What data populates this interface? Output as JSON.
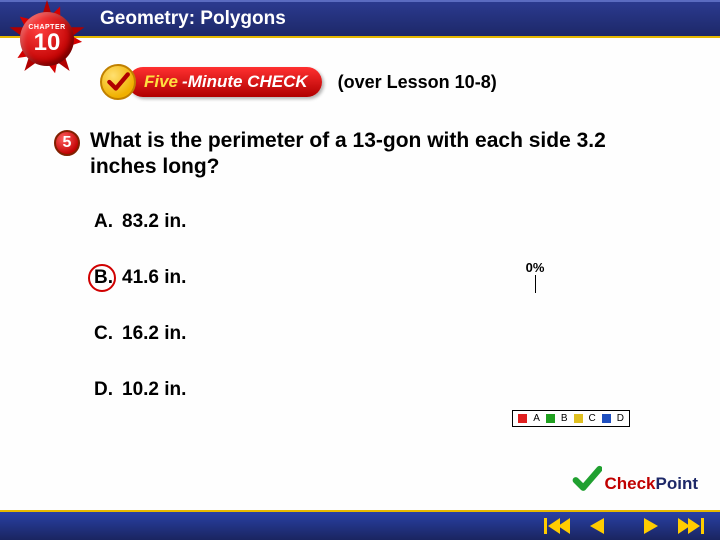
{
  "header": {
    "title": "Geometry: Polygons",
    "chapter_label": "CHAPTER",
    "chapter_number": "10"
  },
  "fmc": {
    "five_label": "Five",
    "rest_label": "-Minute CHECK",
    "over_lesson": "(over Lesson 10-8)"
  },
  "question": {
    "bullet_number": "5",
    "text": "What is the perimeter of a 13-gon with each side 3.2 inches long?"
  },
  "choices": [
    {
      "letter": "A.",
      "text": "83.2 in.",
      "correct": false
    },
    {
      "letter": "B.",
      "text": "41.6 in.",
      "correct": true
    },
    {
      "letter": "C.",
      "text": "16.2 in.",
      "correct": false
    },
    {
      "letter": "D.",
      "text": "10.2 in.",
      "correct": false
    }
  ],
  "poll": {
    "percent_label": "0%",
    "bars": [
      {
        "label": "A",
        "color": "#e02020"
      },
      {
        "label": "B",
        "color": "#20a020"
      },
      {
        "label": "C",
        "color": "#e0c020"
      },
      {
        "label": "D",
        "color": "#2050c0"
      }
    ]
  },
  "checkpoint": {
    "check_word": "Check",
    "point_word": "Point"
  },
  "colors": {
    "header_bg": "#1d2868",
    "accent_gold": "#e6b800",
    "red": "#c00000"
  }
}
